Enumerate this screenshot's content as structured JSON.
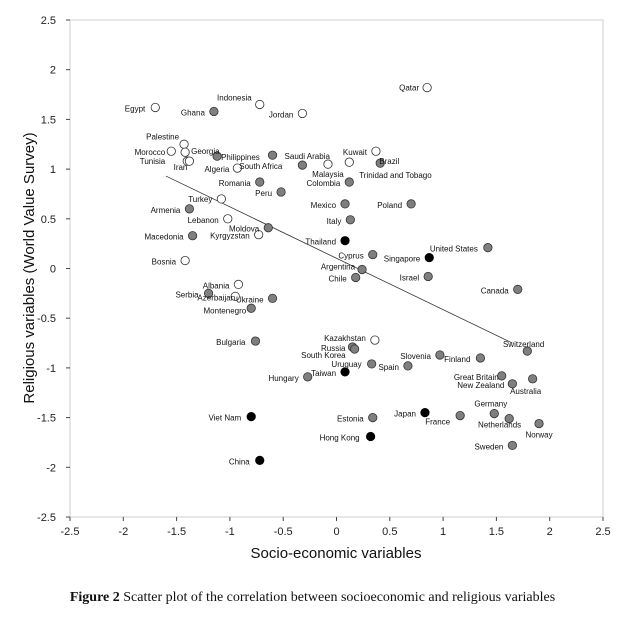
{
  "chart_data": {
    "type": "scatter",
    "xlabel": "Socio-economic variables",
    "ylabel": "Religious variables (World Value Survey)",
    "xlim": [
      -2.5,
      2.5
    ],
    "ylim": [
      -2.5,
      2.5
    ],
    "xticks": [
      "-2.5",
      "-2",
      "-1.5",
      "-1",
      "-0.5",
      "0",
      "0.5",
      "1",
      "1.5",
      "2",
      "2.5"
    ],
    "yticks": [
      "2.5",
      "2",
      "1.5",
      "1",
      "0.5",
      "0",
      "-0.5",
      "-1",
      "-1.5",
      "-2",
      "-2.5"
    ],
    "trendline": {
      "x": [
        -1.6,
        1.65
      ],
      "y": [
        0.93,
        -0.75
      ]
    },
    "legend_markers": {
      "open": "white fill",
      "gray": "gray fill",
      "black": "black fill"
    },
    "points": [
      {
        "name": "Qatar",
        "x": 0.85,
        "y": 1.82,
        "marker": "open",
        "lx": -8,
        "ly": 0,
        "anchor": "end"
      },
      {
        "name": "Egypt",
        "x": -1.7,
        "y": 1.62,
        "marker": "open",
        "lx": -10,
        "ly": 1,
        "anchor": "end"
      },
      {
        "name": "Indonesia",
        "x": -0.72,
        "y": 1.65,
        "marker": "open",
        "lx": -8,
        "ly": -7,
        "anchor": "end"
      },
      {
        "name": "Ghana",
        "x": -1.15,
        "y": 1.58,
        "marker": "gray",
        "lx": -9,
        "ly": 1,
        "anchor": "end"
      },
      {
        "name": "Jordan",
        "x": -0.32,
        "y": 1.56,
        "marker": "open",
        "lx": -9,
        "ly": 1,
        "anchor": "end"
      },
      {
        "name": "Palestine",
        "x": -1.43,
        "y": 1.25,
        "marker": "open",
        "lx": -5,
        "ly": -8,
        "anchor": "end"
      },
      {
        "name": "Morocco",
        "x": -1.55,
        "y": 1.18,
        "marker": "open",
        "lx": -6,
        "ly": 1,
        "anchor": "end"
      },
      {
        "name": "Georgia",
        "x": -1.42,
        "y": 1.17,
        "marker": "open",
        "lx": 6,
        "ly": -1,
        "anchor": "start"
      },
      {
        "name": "Philippines",
        "x": -1.12,
        "y": 1.13,
        "marker": "gray",
        "lx": 4,
        "ly": 1,
        "anchor": "start"
      },
      {
        "name": "Saudi Arabia",
        "x": -0.6,
        "y": 1.14,
        "marker": "gray",
        "lx": 12,
        "ly": 1,
        "anchor": "start"
      },
      {
        "name": "Kuwait",
        "x": 0.37,
        "y": 1.18,
        "marker": "open",
        "lx": -9,
        "ly": 1,
        "anchor": "end"
      },
      {
        "name": "Tunisia",
        "x": -1.4,
        "y": 1.08,
        "marker": "open",
        "lx": -22,
        "ly": 0,
        "anchor": "end"
      },
      {
        "name": "Iran",
        "x": -1.38,
        "y": 1.08,
        "marker": "open",
        "lx": -2,
        "ly": 6,
        "anchor": "end"
      },
      {
        "name": "Algeria",
        "x": -0.93,
        "y": 1.01,
        "marker": "open",
        "lx": -8,
        "ly": 1,
        "anchor": "end"
      },
      {
        "name": "South Africa",
        "x": -0.32,
        "y": 1.04,
        "marker": "gray",
        "lx": -20,
        "ly": 1,
        "anchor": "end"
      },
      {
        "name": "Malaysia",
        "x": -0.08,
        "y": 1.05,
        "marker": "open",
        "lx": 0,
        "ly": 10,
        "anchor": "middle"
      },
      {
        "name": "Brazil",
        "x": 0.12,
        "y": 1.07,
        "marker": "open",
        "lx": 50,
        "ly": -1,
        "anchor": "end"
      },
      {
        "name": "Trinidad and Tobago",
        "x": 0.41,
        "y": 1.06,
        "marker": "gray",
        "lx": -21,
        "ly": 12,
        "anchor": "start"
      },
      {
        "name": "Romania",
        "x": -0.72,
        "y": 0.87,
        "marker": "gray",
        "lx": -9,
        "ly": 1,
        "anchor": "end"
      },
      {
        "name": "Colombia",
        "x": 0.12,
        "y": 0.87,
        "marker": "gray",
        "lx": -9,
        "ly": 1,
        "anchor": "end"
      },
      {
        "name": "Peru",
        "x": -0.52,
        "y": 0.77,
        "marker": "gray",
        "lx": -9,
        "ly": 1,
        "anchor": "end"
      },
      {
        "name": "Turkey",
        "x": -1.08,
        "y": 0.7,
        "marker": "open",
        "lx": -9,
        "ly": 0,
        "anchor": "end"
      },
      {
        "name": "Mexico",
        "x": 0.08,
        "y": 0.65,
        "marker": "gray",
        "lx": -9,
        "ly": 1,
        "anchor": "end"
      },
      {
        "name": "Poland",
        "x": 0.7,
        "y": 0.65,
        "marker": "gray",
        "lx": -9,
        "ly": 1,
        "anchor": "end"
      },
      {
        "name": "Armenia",
        "x": -1.38,
        "y": 0.6,
        "marker": "gray",
        "lx": -9,
        "ly": 1,
        "anchor": "end"
      },
      {
        "name": "Lebanon",
        "x": -1.02,
        "y": 0.5,
        "marker": "open",
        "lx": -9,
        "ly": 1,
        "anchor": "end"
      },
      {
        "name": "Italy",
        "x": 0.13,
        "y": 0.49,
        "marker": "gray",
        "lx": -9,
        "ly": 1,
        "anchor": "end"
      },
      {
        "name": "Moldova",
        "x": -0.64,
        "y": 0.41,
        "marker": "gray",
        "lx": -9,
        "ly": 1,
        "anchor": "end"
      },
      {
        "name": "Macedonia",
        "x": -1.35,
        "y": 0.33,
        "marker": "gray",
        "lx": -9,
        "ly": 1,
        "anchor": "end"
      },
      {
        "name": "Kyrgyzstan",
        "x": -0.73,
        "y": 0.34,
        "marker": "open",
        "lx": -9,
        "ly": 1,
        "anchor": "end"
      },
      {
        "name": "Thailand",
        "x": 0.08,
        "y": 0.28,
        "marker": "black",
        "lx": -9,
        "ly": 1,
        "anchor": "end"
      },
      {
        "name": "United States",
        "x": 1.42,
        "y": 0.21,
        "marker": "gray",
        "lx": -10,
        "ly": 1,
        "anchor": "end"
      },
      {
        "name": "Cyprus",
        "x": 0.34,
        "y": 0.14,
        "marker": "gray",
        "lx": -9,
        "ly": 1,
        "anchor": "end"
      },
      {
        "name": "Singapore",
        "x": 0.87,
        "y": 0.11,
        "marker": "black",
        "lx": -9,
        "ly": 1,
        "anchor": "end"
      },
      {
        "name": "Bosnia",
        "x": -1.42,
        "y": 0.08,
        "marker": "open",
        "lx": -9,
        "ly": 1,
        "anchor": "end"
      },
      {
        "name": "Argentina",
        "x": 0.24,
        "y": -0.01,
        "marker": "gray",
        "lx": -7,
        "ly": -3,
        "anchor": "end"
      },
      {
        "name": "Chile",
        "x": 0.18,
        "y": -0.09,
        "marker": "gray",
        "lx": -9,
        "ly": 1,
        "anchor": "end"
      },
      {
        "name": "Israel",
        "x": 0.86,
        "y": -0.08,
        "marker": "gray",
        "lx": -9,
        "ly": 1,
        "anchor": "end"
      },
      {
        "name": "Canada",
        "x": 1.7,
        "y": -0.21,
        "marker": "gray",
        "lx": -9,
        "ly": 1,
        "anchor": "end"
      },
      {
        "name": "Albania",
        "x": -0.92,
        "y": -0.16,
        "marker": "open",
        "lx": -9,
        "ly": 1,
        "anchor": "end"
      },
      {
        "name": "Serbia",
        "x": -1.2,
        "y": -0.25,
        "marker": "gray",
        "lx": -10,
        "ly": 1,
        "anchor": "end"
      },
      {
        "name": "Azerbaijan",
        "x": -0.95,
        "y": -0.28,
        "marker": "open",
        "lx": 0,
        "ly": 1,
        "anchor": "end"
      },
      {
        "name": "Ukraine",
        "x": -0.6,
        "y": -0.3,
        "marker": "gray",
        "lx": -9,
        "ly": 1,
        "anchor": "end"
      },
      {
        "name": "Montenegro",
        "x": -0.8,
        "y": -0.4,
        "marker": "gray",
        "lx": -5,
        "ly": 2,
        "anchor": "end"
      },
      {
        "name": "Bulgaria",
        "x": -0.76,
        "y": -0.73,
        "marker": "gray",
        "lx": -10,
        "ly": 1,
        "anchor": "end"
      },
      {
        "name": "Kazakhstan",
        "x": 0.36,
        "y": -0.72,
        "marker": "open",
        "lx": -9,
        "ly": -2,
        "anchor": "end"
      },
      {
        "name": "Russia",
        "x": 0.15,
        "y": -0.79,
        "marker": "gray",
        "lx": -7,
        "ly": 1,
        "anchor": "end"
      },
      {
        "name": "Switzerland",
        "x": 1.79,
        "y": -0.83,
        "marker": "gray",
        "lx": 17,
        "ly": -7,
        "anchor": "end"
      },
      {
        "name": "South Korea",
        "x": 0.17,
        "y": -0.81,
        "marker": "gray",
        "lx": -9,
        "ly": 6,
        "anchor": "end"
      },
      {
        "name": "Slovenia",
        "x": 0.97,
        "y": -0.87,
        "marker": "gray",
        "lx": -9,
        "ly": 1,
        "anchor": "end"
      },
      {
        "name": "Finland",
        "x": 1.35,
        "y": -0.9,
        "marker": "gray",
        "lx": -10,
        "ly": 1,
        "anchor": "end"
      },
      {
        "name": "Uruguay",
        "x": 0.33,
        "y": -0.96,
        "marker": "gray",
        "lx": -10,
        "ly": 0,
        "anchor": "end"
      },
      {
        "name": "Spain",
        "x": 0.67,
        "y": -0.98,
        "marker": "gray",
        "lx": -9,
        "ly": 1,
        "anchor": "end"
      },
      {
        "name": "Taiwan",
        "x": 0.08,
        "y": -1.04,
        "marker": "black",
        "lx": -9,
        "ly": 1,
        "anchor": "end"
      },
      {
        "name": "Hungary",
        "x": -0.27,
        "y": -1.09,
        "marker": "gray",
        "lx": -9,
        "ly": 1,
        "anchor": "end"
      },
      {
        "name": "Great Britain",
        "x": 1.55,
        "y": -1.08,
        "marker": "gray",
        "lx": -3,
        "ly": 1,
        "anchor": "end"
      },
      {
        "name": "Australia",
        "x": 1.84,
        "y": -1.11,
        "marker": "gray",
        "lx": -7,
        "ly": 12,
        "anchor": "middle"
      },
      {
        "name": "New Zealand",
        "x": 1.65,
        "y": -1.16,
        "marker": "gray",
        "lx": -8,
        "ly": 1,
        "anchor": "end"
      },
      {
        "name": "Germany",
        "x": 1.48,
        "y": -1.46,
        "marker": "gray",
        "lx": 13,
        "ly": -10,
        "anchor": "end"
      },
      {
        "name": "Viet Nam",
        "x": -0.8,
        "y": -1.49,
        "marker": "black",
        "lx": -10,
        "ly": 1,
        "anchor": "end"
      },
      {
        "name": "Estonia",
        "x": 0.34,
        "y": -1.5,
        "marker": "gray",
        "lx": -9,
        "ly": 1,
        "anchor": "end"
      },
      {
        "name": "Japan",
        "x": 0.83,
        "y": -1.45,
        "marker": "black",
        "lx": -9,
        "ly": 1,
        "anchor": "end"
      },
      {
        "name": "France",
        "x": 1.16,
        "y": -1.48,
        "marker": "gray",
        "lx": -10,
        "ly": 6,
        "anchor": "end"
      },
      {
        "name": "Netherlands",
        "x": 1.62,
        "y": -1.51,
        "marker": "gray",
        "lx": 12,
        "ly": 6,
        "anchor": "end"
      },
      {
        "name": "Norway",
        "x": 1.9,
        "y": -1.56,
        "marker": "gray",
        "lx": 0,
        "ly": 11,
        "anchor": "middle"
      },
      {
        "name": "Hong Kong",
        "x": 0.32,
        "y": -1.69,
        "marker": "black",
        "lx": -11,
        "ly": 1,
        "anchor": "end"
      },
      {
        "name": "Sweden",
        "x": 1.65,
        "y": -1.78,
        "marker": "gray",
        "lx": -9,
        "ly": 1,
        "anchor": "end"
      },
      {
        "name": "China",
        "x": -0.72,
        "y": -1.93,
        "marker": "black",
        "lx": -10,
        "ly": 1,
        "anchor": "end"
      }
    ],
    "colors": {
      "open": "#ffffff",
      "gray": "#7f7f7f",
      "black": "#000000",
      "stroke": "#333333"
    }
  },
  "caption": {
    "label": "Figure 2",
    "text": "Scatter plot of the correlation between socioeconomic and religious variables"
  }
}
